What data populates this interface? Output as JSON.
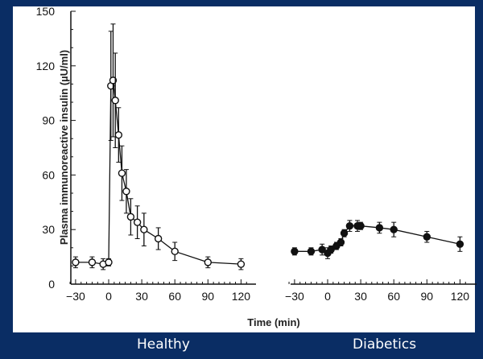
{
  "background_color": "#0a2d64",
  "chart_data": [
    {
      "type": "line",
      "panel_label": "Healthy",
      "marker": "open-circle",
      "ylabel": "Plasma immunoreactive insulin (µU/ml)",
      "xlabel": "Time (min)",
      "xlim": [
        -30,
        130
      ],
      "ylim": [
        0,
        150
      ],
      "xticks": [
        -30,
        0,
        30,
        60,
        90,
        120
      ],
      "yticks": [
        0,
        30,
        60,
        90,
        120,
        150
      ],
      "x": [
        -30,
        -15,
        -5,
        0,
        2,
        4,
        6,
        9,
        12,
        16,
        20,
        26,
        32,
        45,
        60,
        90,
        120
      ],
      "y": [
        12,
        12,
        11,
        12,
        109,
        112,
        101,
        82,
        61,
        51,
        37,
        34,
        30,
        25,
        18,
        12,
        11
      ],
      "err": [
        3,
        3,
        3,
        2,
        30,
        31,
        26,
        15,
        15,
        12,
        10,
        9,
        9,
        6,
        5,
        3,
        3
      ]
    },
    {
      "type": "line",
      "panel_label": "Diabetics",
      "marker": "filled-circle",
      "xlim": [
        -30,
        130
      ],
      "ylim": [
        0,
        150
      ],
      "xticks": [
        -30,
        0,
        30,
        60,
        90,
        120
      ],
      "x": [
        -30,
        -15,
        -5,
        0,
        3,
        8,
        12,
        15,
        20,
        27,
        30,
        47,
        60,
        90,
        120
      ],
      "y": [
        18,
        18,
        19,
        17,
        19,
        21,
        23,
        28,
        32,
        32,
        32,
        31,
        30,
        26,
        22
      ],
      "err": [
        2,
        2,
        3,
        3,
        2,
        2,
        2,
        2,
        3,
        3,
        2,
        3,
        4,
        3,
        4
      ]
    }
  ],
  "labels": {
    "healthy": "Healthy",
    "diabetics": "Diabetics"
  }
}
